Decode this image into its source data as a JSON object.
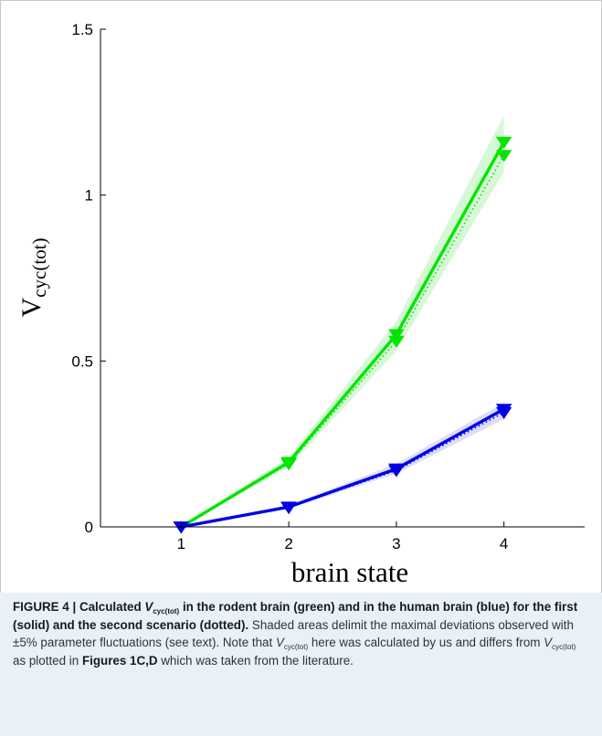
{
  "chart_data": {
    "type": "line",
    "xlabel": "brain state",
    "ylabel_main": "V",
    "ylabel_sub": "cyc(tot)",
    "x": [
      1,
      2,
      3,
      4
    ],
    "xticks": [
      "1",
      "2",
      "3",
      "4"
    ],
    "yticks": [
      "0",
      "0.5",
      "1",
      "1.5"
    ],
    "xlim": [
      0.25,
      4.75
    ],
    "ylim": [
      0,
      1.5
    ],
    "series": [
      {
        "color": "#00e600",
        "style": "solid",
        "marker": "triangle-down",
        "values": [
          0.0,
          0.195,
          0.58,
          1.16
        ]
      },
      {
        "color": "#00e600",
        "style": "dotted",
        "marker": "triangle-down",
        "values": [
          0.0,
          0.19,
          0.56,
          1.12
        ]
      },
      {
        "color": "#0000e6",
        "style": "solid",
        "marker": "triangle-down",
        "values": [
          0.0,
          0.06,
          0.175,
          0.355
        ]
      },
      {
        "color": "#0000e6",
        "style": "dotted",
        "marker": "triangle-down",
        "values": [
          0.0,
          0.058,
          0.17,
          0.345
        ]
      }
    ],
    "bands": [
      {
        "color": "#c8f5c8",
        "lower": [
          0.0,
          0.18,
          0.53,
          1.07
        ],
        "upper": [
          0.0,
          0.21,
          0.62,
          1.24
        ]
      },
      {
        "color": "#d2d2f5",
        "lower": [
          0.0,
          0.055,
          0.16,
          0.325
        ],
        "upper": [
          0.0,
          0.066,
          0.19,
          0.375
        ]
      }
    ],
    "grid": false
  },
  "caption": {
    "fig_label": "FIGURE 4 | Calculated ",
    "v": "V",
    "sub": "cyc(tot)",
    "bold_rest": " in the rodent brain (green) and in the human brain (blue) for the first (solid) and the second scenario (dotted).",
    "text1": " Shaded areas delimit the maximal deviations observed with ±5% parameter fluctuations (see text). Note that ",
    "text2": " here was calculated by us and differs from ",
    "text3": " as plotted in ",
    "figref": "Figures 1C,D",
    "text4": " which was taken from the literature."
  }
}
